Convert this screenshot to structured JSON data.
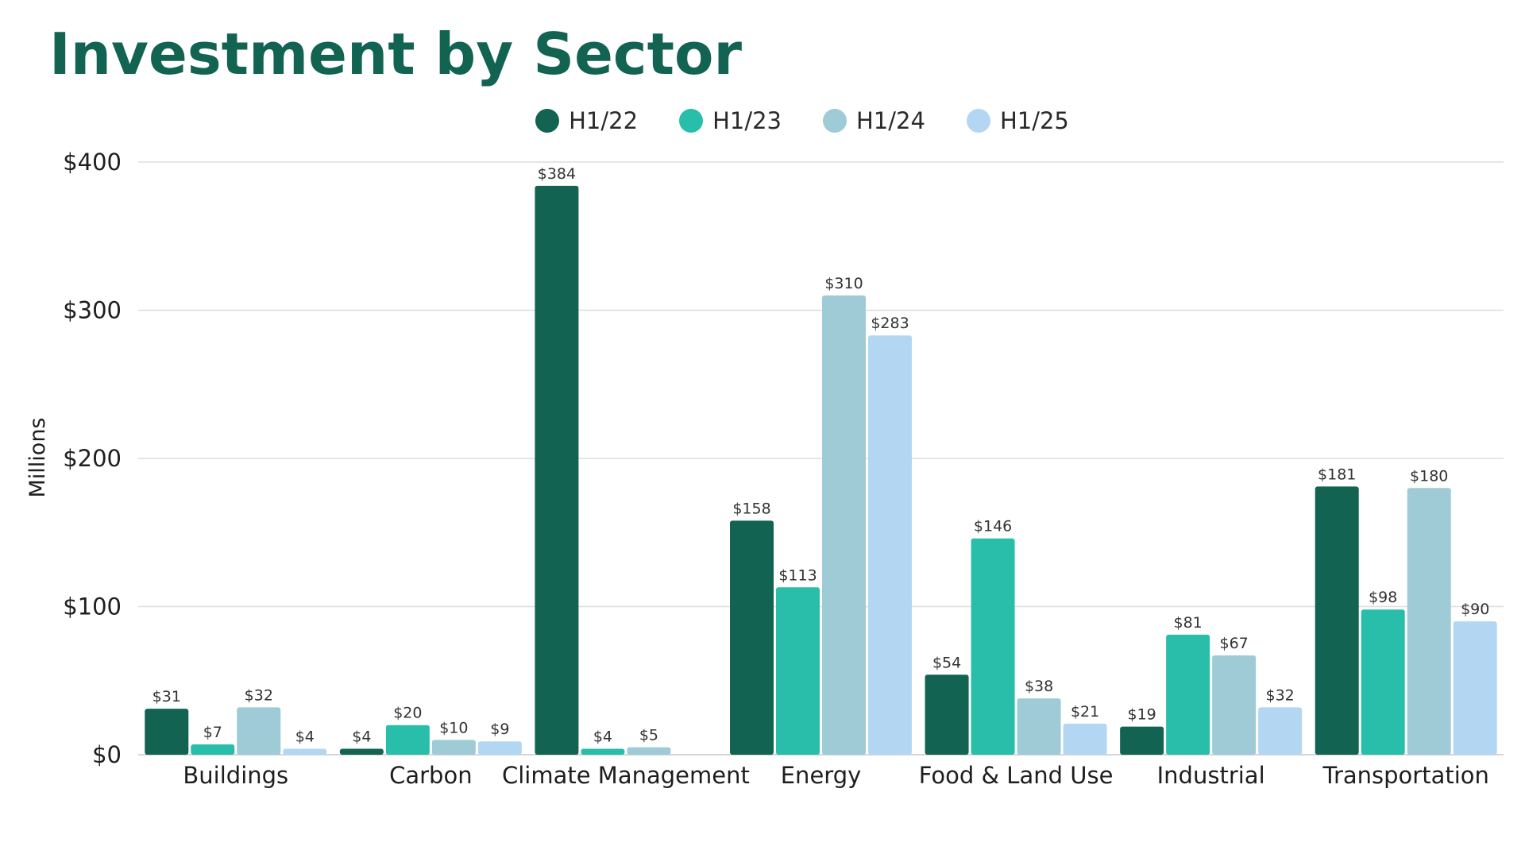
{
  "chart_data": {
    "type": "bar",
    "title": "Investment by Sector",
    "ylabel": "Millions",
    "xlabel": "",
    "ylim": [
      0,
      400
    ],
    "yticks": [
      0,
      100,
      200,
      300,
      400
    ],
    "ytick_labels": [
      "$0",
      "$100",
      "$200",
      "$300",
      "$400"
    ],
    "grid": true,
    "legend_position": "top-center",
    "categories": [
      "Buildings",
      "Carbon",
      "Climate Management",
      "Energy",
      "Food & Land Use",
      "Industrial",
      "Transportation"
    ],
    "series": [
      {
        "name": "H1/22",
        "color": "#136352",
        "values": [
          31,
          4,
          384,
          158,
          54,
          19,
          181
        ],
        "labels": [
          "$31",
          "$4",
          "$384",
          "$158",
          "$54",
          "$19",
          "$181"
        ]
      },
      {
        "name": "H1/23",
        "color": "#28BEAA",
        "values": [
          7,
          20,
          4,
          113,
          146,
          81,
          98
        ],
        "labels": [
          "$7",
          "$20",
          "$4",
          "$113",
          "$146",
          "$81",
          "$98"
        ]
      },
      {
        "name": "H1/24",
        "color": "#9ECBD5",
        "values": [
          32,
          10,
          5,
          310,
          38,
          67,
          180
        ],
        "labels": [
          "$32",
          "$10",
          "$5",
          "$310",
          "$38",
          "$67",
          "$180"
        ]
      },
      {
        "name": "H1/25",
        "color": "#B3D7F2",
        "values": [
          4,
          9,
          null,
          283,
          21,
          32,
          90
        ],
        "labels": [
          "$4",
          "$9",
          "",
          "$283",
          "$21",
          "$32",
          "$90"
        ]
      }
    ]
  }
}
